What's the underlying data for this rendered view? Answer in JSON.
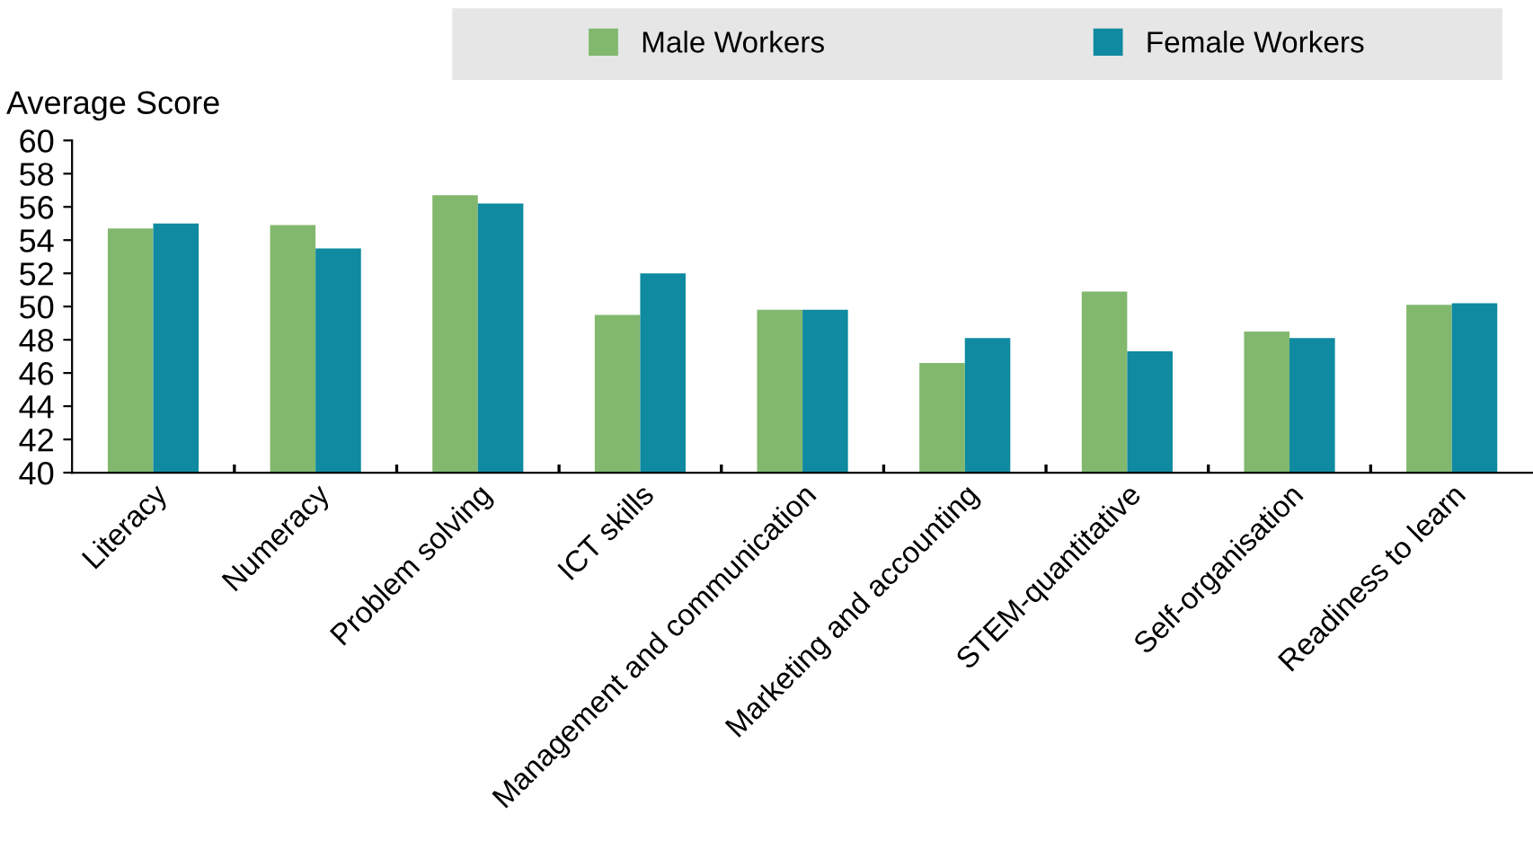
{
  "chart_data": {
    "type": "bar",
    "ylabel": "Average Score",
    "categories": [
      "Literacy",
      "Numeracy",
      "Problem solving",
      "ICT skills",
      "Management and communication",
      "Marketing and accounting",
      "STEM-quantitative",
      "Self-organisation",
      "Readiness to learn"
    ],
    "series": [
      {
        "name": "Male Workers",
        "color": "#82b86e",
        "values": [
          54.7,
          54.9,
          56.7,
          49.5,
          49.8,
          46.6,
          50.9,
          48.5,
          50.1
        ]
      },
      {
        "name": "Female Workers",
        "color": "#0f8aa0",
        "values": [
          55.0,
          53.5,
          56.2,
          52.0,
          49.8,
          48.1,
          47.3,
          48.1,
          50.2
        ]
      }
    ],
    "ylim": [
      40,
      60
    ],
    "yticks": [
      40,
      42,
      44,
      46,
      48,
      50,
      52,
      54,
      56,
      58,
      60
    ],
    "grid": false,
    "legend": "top"
  }
}
